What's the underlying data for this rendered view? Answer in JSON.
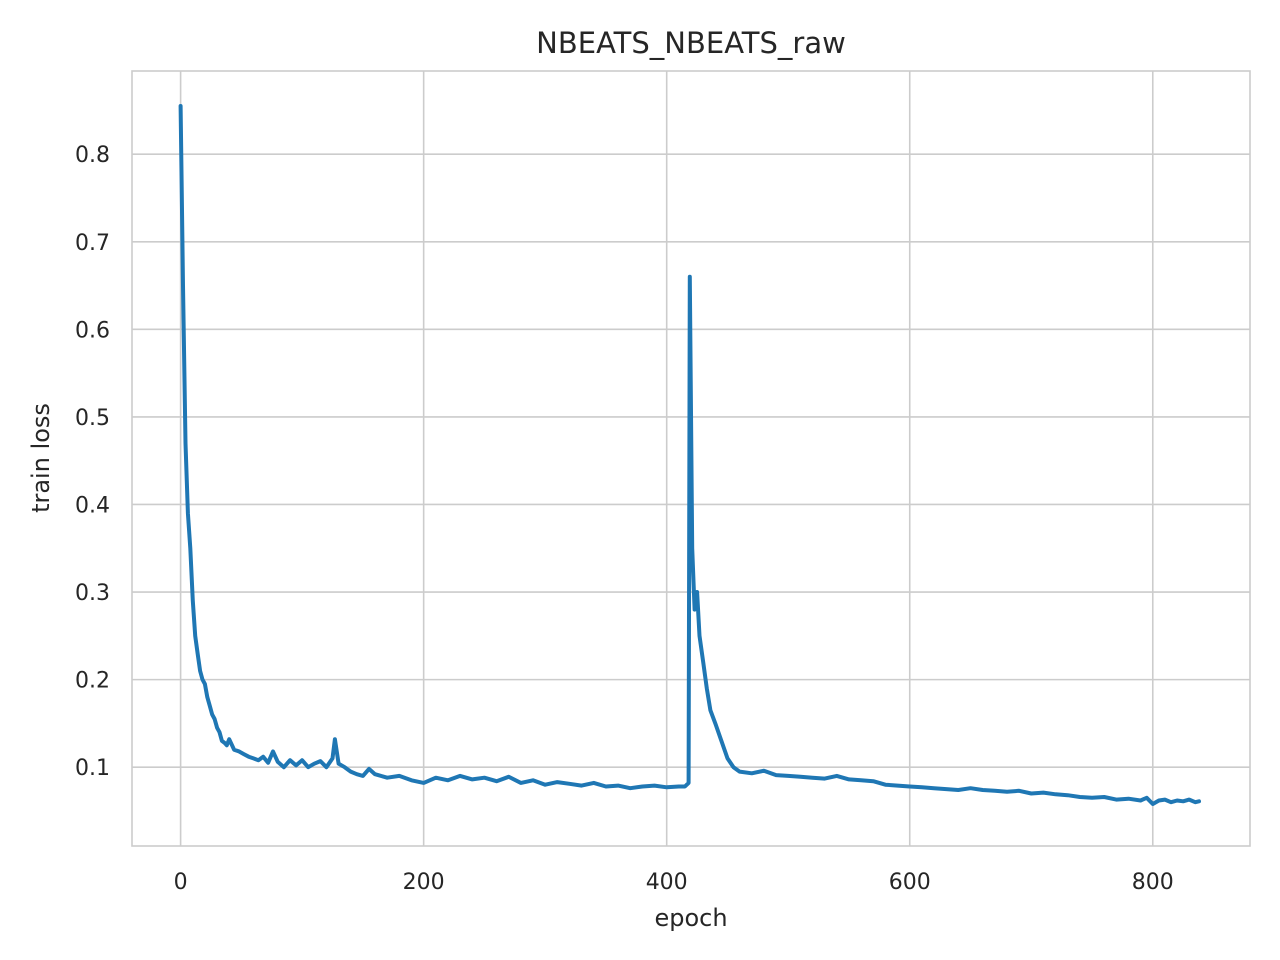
{
  "chart_data": {
    "type": "line",
    "title": "NBEATS_NBEATS_raw",
    "xlabel": "epoch",
    "ylabel": "train loss",
    "xlim": [
      -40,
      880
    ],
    "ylim": [
      0.01,
      0.895
    ],
    "xticks": [
      0,
      200,
      400,
      600,
      800
    ],
    "yticks": [
      0.1,
      0.2,
      0.3,
      0.4,
      0.5,
      0.6,
      0.7,
      0.8
    ],
    "xtick_labels": [
      "0",
      "200",
      "400",
      "600",
      "800"
    ],
    "ytick_labels": [
      "0.1",
      "0.2",
      "0.3",
      "0.4",
      "0.5",
      "0.6",
      "0.7",
      "0.8"
    ],
    "grid": true,
    "legend": false,
    "series": [
      {
        "color": "#1f77b4",
        "x": [
          0,
          2,
          4,
          6,
          8,
          10,
          12,
          14,
          16,
          18,
          20,
          22,
          24,
          26,
          28,
          30,
          32,
          34,
          36,
          38,
          40,
          44,
          48,
          52,
          56,
          60,
          64,
          68,
          72,
          76,
          80,
          85,
          90,
          95,
          100,
          105,
          110,
          115,
          120,
          125,
          127,
          130,
          135,
          140,
          145,
          150,
          155,
          160,
          170,
          180,
          190,
          200,
          210,
          220,
          230,
          240,
          250,
          260,
          270,
          280,
          290,
          300,
          310,
          320,
          330,
          340,
          350,
          360,
          370,
          380,
          390,
          400,
          410,
          415,
          418,
          419,
          421,
          423,
          425,
          427,
          430,
          433,
          436,
          440,
          445,
          450,
          455,
          460,
          470,
          480,
          490,
          500,
          510,
          520,
          530,
          540,
          550,
          560,
          570,
          580,
          590,
          600,
          610,
          620,
          630,
          640,
          650,
          660,
          670,
          680,
          690,
          700,
          710,
          720,
          730,
          740,
          750,
          760,
          770,
          780,
          790,
          795,
          800,
          805,
          810,
          815,
          820,
          825,
          830,
          835,
          838
        ],
        "y": [
          0.855,
          0.65,
          0.47,
          0.39,
          0.35,
          0.29,
          0.25,
          0.23,
          0.21,
          0.2,
          0.195,
          0.18,
          0.17,
          0.16,
          0.155,
          0.145,
          0.14,
          0.13,
          0.128,
          0.125,
          0.132,
          0.12,
          0.118,
          0.115,
          0.112,
          0.11,
          0.108,
          0.112,
          0.105,
          0.118,
          0.106,
          0.1,
          0.108,
          0.102,
          0.108,
          0.1,
          0.104,
          0.107,
          0.1,
          0.11,
          0.132,
          0.104,
          0.1,
          0.095,
          0.092,
          0.09,
          0.098,
          0.092,
          0.088,
          0.09,
          0.085,
          0.082,
          0.088,
          0.085,
          0.09,
          0.086,
          0.088,
          0.084,
          0.089,
          0.082,
          0.085,
          0.08,
          0.083,
          0.081,
          0.079,
          0.082,
          0.078,
          0.079,
          0.076,
          0.078,
          0.079,
          0.077,
          0.078,
          0.078,
          0.082,
          0.66,
          0.35,
          0.28,
          0.3,
          0.25,
          0.22,
          0.19,
          0.165,
          0.15,
          0.13,
          0.11,
          0.1,
          0.095,
          0.093,
          0.096,
          0.091,
          0.09,
          0.089,
          0.088,
          0.087,
          0.09,
          0.086,
          0.085,
          0.084,
          0.08,
          0.079,
          0.078,
          0.077,
          0.076,
          0.075,
          0.074,
          0.076,
          0.074,
          0.073,
          0.072,
          0.073,
          0.07,
          0.071,
          0.069,
          0.068,
          0.066,
          0.065,
          0.066,
          0.063,
          0.064,
          0.062,
          0.065,
          0.058,
          0.062,
          0.063,
          0.06,
          0.062,
          0.061,
          0.063,
          0.06,
          0.061
        ]
      }
    ]
  }
}
